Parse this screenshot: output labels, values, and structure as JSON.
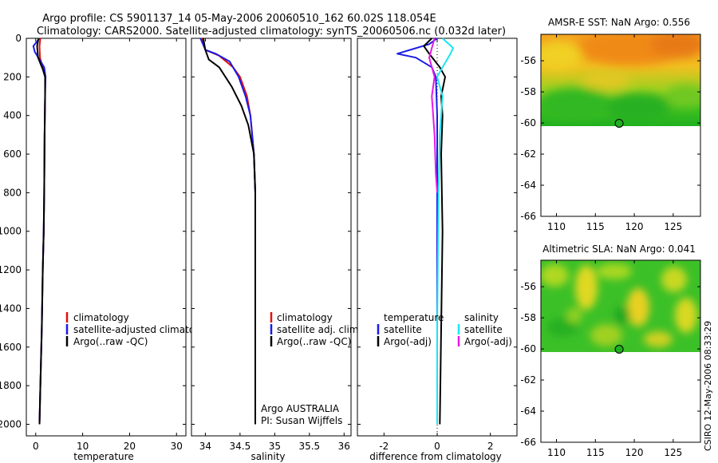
{
  "header": {
    "line1": "Argo profile: CS 5901137_14 05-May-2006 20060510_162 60.02S 118.054E",
    "line2": "Climatology: CARS2000. Satellite-adjusted climatology: synTS_20060506.nc (0.032d later)"
  },
  "side_label": "CSIRO 12-May-2006 08:33:29",
  "colors": {
    "red": "#e01010",
    "blue": "#1a1ae6",
    "black": "#000000",
    "cyan": "#19e6f0",
    "magenta": "#e619e6"
  },
  "chart_data": [
    {
      "type": "line",
      "xlabel": "temperature",
      "xlim": [
        -2,
        32
      ],
      "xticks": [
        0,
        10,
        20,
        30
      ],
      "ylim": [
        2060,
        0
      ],
      "yticks": [
        0,
        200,
        400,
        600,
        800,
        1000,
        1200,
        1400,
        1600,
        1800,
        2000
      ],
      "legend": [
        "climatology",
        "satellite-adjusted climatolog",
        "Argo(..raw -QC)"
      ],
      "series": [
        {
          "name": "climatology",
          "color": "red",
          "x": [
            1.0,
            0.8,
            0.9,
            1.6,
            2.0,
            2.0,
            1.9,
            1.8,
            1.7,
            1.5,
            1.3,
            1.0,
            0.8
          ],
          "y": [
            0,
            40,
            100,
            160,
            200,
            300,
            500,
            800,
            1000,
            1200,
            1500,
            1800,
            2000
          ]
        },
        {
          "name": "satellite-adjusted climatolog",
          "color": "blue",
          "x": [
            0.8,
            -0.5,
            -0.2,
            1.8,
            2.1,
            2.0,
            1.9,
            1.8,
            1.7,
            1.5,
            1.3,
            1.0,
            0.8
          ],
          "y": [
            0,
            40,
            70,
            150,
            200,
            300,
            500,
            800,
            1000,
            1200,
            1500,
            1800,
            2000
          ]
        },
        {
          "name": "Argo(..raw -QC)",
          "color": "black",
          "x": [
            0.6,
            0.3,
            0.5,
            1.5,
            2.0,
            2.0,
            1.9,
            1.8,
            1.7,
            1.5,
            1.3,
            1.0,
            0.8
          ],
          "y": [
            0,
            40,
            100,
            160,
            200,
            300,
            500,
            800,
            1000,
            1200,
            1500,
            1800,
            2000
          ]
        }
      ]
    },
    {
      "type": "line",
      "xlabel": "salinity",
      "xlim": [
        33.8,
        36.1
      ],
      "xticks": [
        34,
        34.5,
        35,
        35.5,
        36
      ],
      "xtick_labels": [
        "34",
        "34.5",
        "35",
        "35.5",
        "36"
      ],
      "ylim": [
        2060,
        0
      ],
      "legend": [
        "climatology",
        "satellite adj. clim.",
        "Argo(..raw -QC)"
      ],
      "annotation": [
        "Argo AUSTRALIA",
        "PI: Susan Wijffels"
      ],
      "series": [
        {
          "name": "climatology",
          "color": "red",
          "x": [
            33.95,
            34.0,
            34.2,
            34.4,
            34.5,
            34.6,
            34.65,
            34.7,
            34.72,
            34.72,
            34.72
          ],
          "y": [
            0,
            60,
            90,
            150,
            200,
            300,
            400,
            600,
            800,
            1500,
            2000
          ]
        },
        {
          "name": "satellite adj. clim.",
          "color": "blue",
          "x": [
            33.93,
            34.0,
            34.15,
            34.35,
            34.48,
            34.58,
            34.65,
            34.7,
            34.72,
            34.72,
            34.72
          ],
          "y": [
            0,
            60,
            80,
            120,
            200,
            300,
            400,
            600,
            800,
            1500,
            2000
          ]
        },
        {
          "name": "Argo(..raw -QC)",
          "color": "black",
          "x": [
            33.97,
            34.0,
            34.05,
            34.2,
            34.38,
            34.52,
            34.62,
            34.7,
            34.72,
            34.72,
            34.72
          ],
          "y": [
            0,
            60,
            110,
            150,
            250,
            350,
            450,
            600,
            800,
            1500,
            2000
          ]
        }
      ]
    },
    {
      "type": "line",
      "xlabel": "difference from climatology",
      "xlim": [
        -3,
        3
      ],
      "xticks": [
        -2,
        0,
        2
      ],
      "ylim": [
        2060,
        0
      ],
      "legend_titles": [
        "temperature",
        "salinity"
      ],
      "legend": [
        "satellite",
        "Argo(-adj)",
        "satellite",
        "Argo(-adj)"
      ],
      "series": [
        {
          "name": "satellite",
          "group": "temperature",
          "color": "blue",
          "x": [
            0.0,
            -0.3,
            -1.5,
            -0.8,
            -0.2,
            -0.05,
            0.0,
            0.0,
            0.0
          ],
          "y": [
            0,
            30,
            80,
            100,
            150,
            200,
            400,
            1000,
            2000
          ]
        },
        {
          "name": "Argo(-adj)",
          "group": "temperature",
          "color": "black",
          "x": [
            -0.2,
            -0.5,
            -0.3,
            0.1,
            0.3,
            0.15,
            0.2,
            0.15,
            0.2,
            0.15,
            0.1
          ],
          "y": [
            0,
            40,
            80,
            150,
            200,
            300,
            400,
            600,
            1000,
            1500,
            2000
          ]
        },
        {
          "name": "satellite",
          "group": "salinity",
          "color": "cyan",
          "x": [
            0.2,
            0.6,
            0.5,
            0.2,
            0.0,
            0.2,
            0.1,
            0.05,
            0.0,
            0.0
          ],
          "y": [
            0,
            50,
            80,
            150,
            200,
            300,
            500,
            800,
            1500,
            2000
          ]
        },
        {
          "name": "Argo(-adj)",
          "group": "salinity",
          "color": "magenta",
          "x": [
            -0.1,
            -0.2,
            -0.3,
            -0.1,
            -0.2,
            -0.1,
            -0.05,
            0.0
          ],
          "y": [
            0,
            50,
            100,
            200,
            300,
            500,
            700,
            800
          ]
        }
      ]
    },
    {
      "type": "heatmap",
      "title": "AMSR-E SST: NaN Argo: 0.556",
      "xticks": [
        110,
        115,
        120,
        125
      ],
      "yticks": [
        -56,
        -58,
        -60,
        -62,
        -64,
        -66
      ],
      "xlim": [
        108,
        128.5
      ],
      "ylim": [
        -66,
        -54.3
      ],
      "data_extent_lat": [
        -60.2,
        -54.3
      ],
      "marker": {
        "lon": 118.054,
        "lat": -60.02
      }
    },
    {
      "type": "heatmap",
      "title": "Altimetric SLA: NaN Argo: 0.041",
      "xticks": [
        110,
        115,
        120,
        125
      ],
      "yticks": [
        -56,
        -58,
        -60,
        -62,
        -64,
        -66
      ],
      "xlim": [
        108,
        128.5
      ],
      "ylim": [
        -66,
        -54.3
      ],
      "data_extent_lat": [
        -60.2,
        -54.3
      ],
      "marker": {
        "lon": 118.054,
        "lat": -60.02
      }
    }
  ]
}
